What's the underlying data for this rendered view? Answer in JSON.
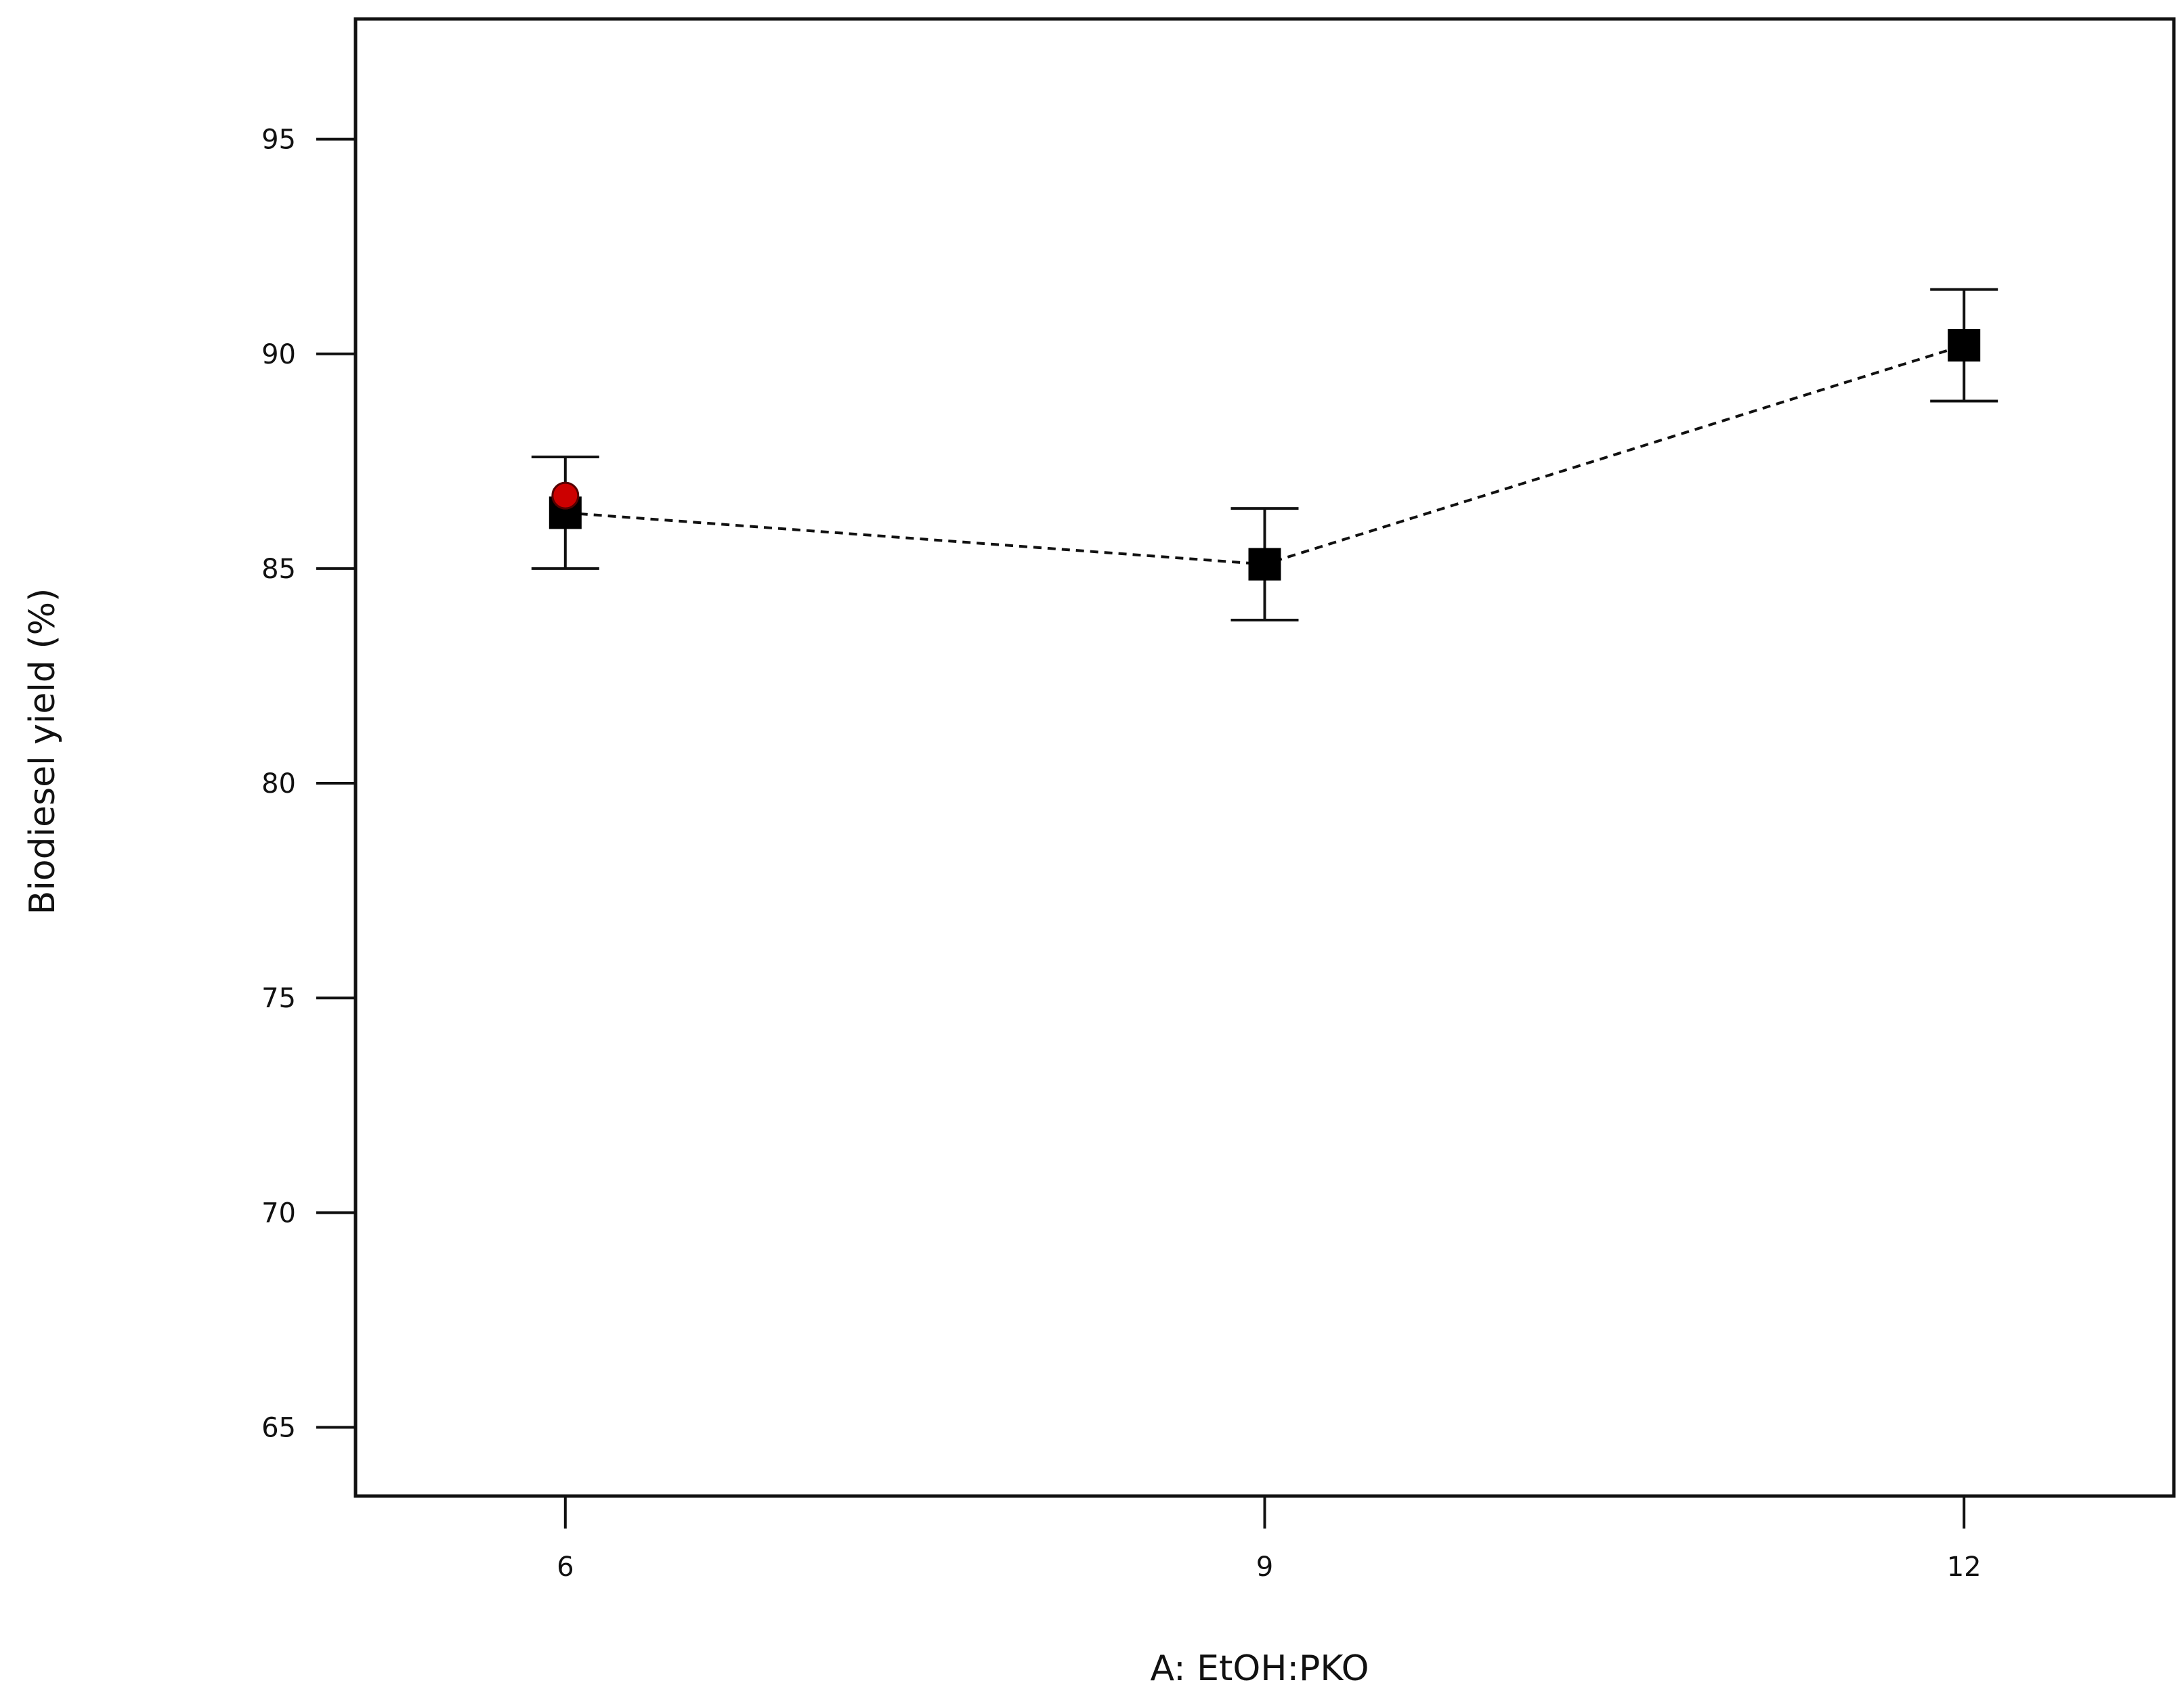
{
  "chart_data": {
    "type": "scatter",
    "title": "",
    "xlabel": "A: EtOH:PKO",
    "ylabel": "Biodiesel yield (%)",
    "xlim": [
      5.1,
      12.9
    ],
    "ylim": [
      63.4,
      97.8
    ],
    "x_ticks": [
      6,
      9,
      12
    ],
    "y_ticks": [
      65,
      70,
      75,
      80,
      85,
      90,
      95
    ],
    "x_tick_labels": [
      "6",
      "9",
      "12"
    ],
    "y_tick_labels": [
      "65",
      "70",
      "75",
      "80",
      "85",
      "90",
      "95"
    ],
    "grid": false,
    "legend": "none",
    "series": [
      {
        "marker": "square",
        "color": "#000000",
        "line_style": "dashed",
        "x": [
          6,
          9,
          12
        ],
        "y": [
          86.3,
          85.1,
          90.2
        ],
        "error_low": [
          85.0,
          83.8,
          88.9
        ],
        "error_high": [
          87.6,
          86.4,
          91.5
        ]
      },
      {
        "marker": "circle",
        "color": "#cc0000",
        "x": [
          6
        ],
        "y": [
          86.7
        ]
      }
    ]
  }
}
